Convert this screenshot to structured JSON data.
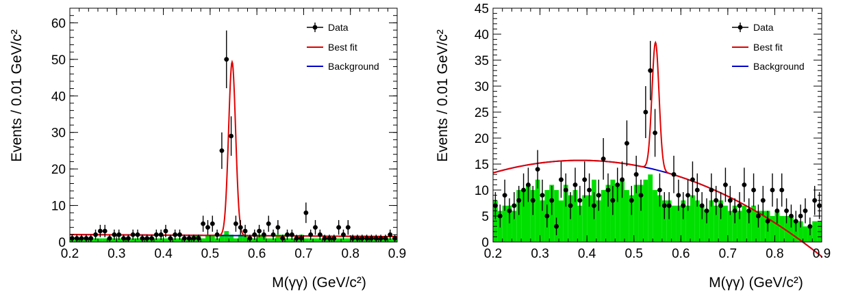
{
  "chart_data": [
    {
      "type": "histogram",
      "xlabel": "M(γγ) (GeV/c²)",
      "ylabel": "Events / 0.01 GeV/c²",
      "xlim": [
        0.2,
        0.9
      ],
      "ylim": [
        0,
        64
      ],
      "xticks": [
        "0.2",
        "0.3",
        "0.4",
        "0.5",
        "0.6",
        "0.7",
        "0.8",
        "0.9"
      ],
      "yticks": [
        "0",
        "10",
        "20",
        "30",
        "40",
        "50",
        "60"
      ],
      "ytick_values": [
        0,
        10,
        20,
        30,
        40,
        50,
        60
      ],
      "legend": [
        "Data",
        "Best fit",
        "Background"
      ],
      "colors": {
        "data": "#000000",
        "fit": "#e00000",
        "background": "#0000cc",
        "mc": "#00e000"
      },
      "data_points": {
        "x": [
          0.205,
          0.215,
          0.225,
          0.235,
          0.245,
          0.255,
          0.265,
          0.275,
          0.285,
          0.295,
          0.305,
          0.315,
          0.325,
          0.335,
          0.345,
          0.355,
          0.365,
          0.375,
          0.385,
          0.395,
          0.405,
          0.415,
          0.425,
          0.435,
          0.445,
          0.455,
          0.465,
          0.475,
          0.485,
          0.495,
          0.505,
          0.515,
          0.525,
          0.535,
          0.545,
          0.555,
          0.565,
          0.575,
          0.585,
          0.595,
          0.605,
          0.615,
          0.625,
          0.635,
          0.645,
          0.655,
          0.665,
          0.675,
          0.685,
          0.695,
          0.705,
          0.715,
          0.725,
          0.735,
          0.745,
          0.755,
          0.765,
          0.775,
          0.785,
          0.795,
          0.805,
          0.815,
          0.825,
          0.835,
          0.845,
          0.855,
          0.865,
          0.875,
          0.885,
          0.895
        ],
        "y": [
          1,
          1,
          1,
          1,
          1,
          2,
          3,
          3,
          1,
          2,
          2,
          1,
          1,
          2,
          2,
          1,
          1,
          1,
          2,
          2,
          3,
          1,
          2,
          2,
          1,
          1,
          1,
          1,
          5,
          4,
          5,
          2,
          25,
          50,
          29,
          5,
          4,
          3,
          1,
          2,
          3,
          2,
          5,
          2,
          4,
          1,
          2,
          2,
          1,
          1,
          8,
          2,
          4,
          2,
          1,
          1,
          1,
          4,
          2,
          4,
          1,
          1,
          1,
          1,
          1,
          1,
          1,
          1,
          2,
          1
        ],
        "yerr": [
          1,
          1,
          1,
          1,
          1,
          1.4,
          1.7,
          1.7,
          1,
          1.4,
          1.4,
          1,
          1,
          1.4,
          1.4,
          1,
          1,
          1,
          1.4,
          1.4,
          1.7,
          1,
          1.4,
          1.4,
          1,
          1,
          1,
          1,
          2.2,
          2,
          2.2,
          1.4,
          5,
          7.9,
          5.4,
          2.2,
          2,
          1.7,
          1,
          1.4,
          1.7,
          1.4,
          2.2,
          1.4,
          2,
          1,
          1.4,
          1.4,
          1,
          1,
          2.8,
          1.4,
          2,
          1.4,
          1,
          1,
          1,
          2,
          1.4,
          2,
          1,
          1,
          1,
          1,
          1,
          1,
          1,
          1,
          1.4,
          1
        ]
      },
      "mc_histogram": {
        "bin_width": 0.01,
        "x_start": 0.2,
        "values": [
          1,
          1,
          1,
          1,
          1,
          1,
          1,
          1,
          1,
          1,
          1,
          1,
          1,
          1,
          1,
          1,
          1,
          1,
          1,
          1,
          1,
          1,
          1,
          1,
          1,
          1,
          2,
          2,
          1,
          2,
          2,
          1,
          2,
          3,
          2,
          1,
          2,
          2,
          1,
          1,
          2,
          2,
          1,
          1,
          2,
          2,
          1,
          1,
          1,
          2,
          1,
          1,
          1,
          1,
          1,
          1,
          1,
          1,
          1,
          1,
          1,
          1,
          1,
          1,
          1,
          1,
          1,
          1,
          1,
          1
        ]
      },
      "fit": {
        "background": [
          2.2,
          -0.8
        ],
        "peak_mean": 0.547,
        "peak_sigma": 0.0075,
        "peak_amplitude": 47.5
      }
    },
    {
      "type": "histogram",
      "xlabel": "M(γγ) (GeV/c²)",
      "ylabel": "Events / 0.01 GeV/c²",
      "xlim": [
        0.2,
        0.9
      ],
      "ylim": [
        0,
        45
      ],
      "xticks": [
        "0.2",
        "0.3",
        "0.4",
        "0.5",
        "0.6",
        "0.7",
        "0.8",
        "0.9"
      ],
      "yticks": [
        "0",
        "5",
        "10",
        "15",
        "20",
        "25",
        "30",
        "35",
        "40",
        "45"
      ],
      "ytick_values": [
        0,
        5,
        10,
        15,
        20,
        25,
        30,
        35,
        40,
        45
      ],
      "legend": [
        "Data",
        "Best fit",
        "Background"
      ],
      "colors": {
        "data": "#000000",
        "fit": "#e00000",
        "background": "#0000cc",
        "mc": "#00e000"
      },
      "data_points": {
        "x": [
          0.205,
          0.215,
          0.225,
          0.235,
          0.245,
          0.255,
          0.265,
          0.275,
          0.285,
          0.295,
          0.305,
          0.315,
          0.325,
          0.335,
          0.345,
          0.355,
          0.365,
          0.375,
          0.385,
          0.395,
          0.405,
          0.415,
          0.425,
          0.435,
          0.445,
          0.455,
          0.465,
          0.475,
          0.485,
          0.495,
          0.505,
          0.515,
          0.525,
          0.535,
          0.545,
          0.555,
          0.565,
          0.575,
          0.585,
          0.595,
          0.605,
          0.615,
          0.625,
          0.635,
          0.645,
          0.655,
          0.665,
          0.675,
          0.685,
          0.695,
          0.705,
          0.715,
          0.725,
          0.735,
          0.745,
          0.755,
          0.765,
          0.775,
          0.785,
          0.795,
          0.805,
          0.815,
          0.825,
          0.835,
          0.845,
          0.855,
          0.865,
          0.875,
          0.885,
          0.895
        ],
        "y": [
          7,
          5,
          9,
          6,
          7,
          8,
          10,
          11,
          8,
          14,
          9,
          5,
          8,
          3,
          12,
          10,
          7,
          11,
          8,
          12,
          10,
          7,
          9,
          16,
          10,
          8,
          11,
          12,
          19,
          8,
          13,
          9,
          25,
          33,
          21,
          10,
          7,
          7,
          13,
          9,
          7,
          9,
          12,
          10,
          7,
          6,
          10,
          8,
          7,
          11,
          8,
          6,
          7,
          11,
          6,
          10,
          5,
          8,
          4,
          10,
          6,
          10,
          6,
          5,
          4,
          5,
          6,
          3,
          8,
          7
        ],
        "yerr": [
          2.6,
          2.2,
          3,
          2.4,
          2.6,
          2.8,
          3.2,
          3.3,
          2.8,
          3.7,
          3,
          2.2,
          2.8,
          1.7,
          3.5,
          3.2,
          2.6,
          3.3,
          2.8,
          3.5,
          3.2,
          2.6,
          3,
          4,
          3.2,
          2.8,
          3.3,
          3.5,
          4.4,
          2.8,
          3.6,
          3,
          5,
          5.7,
          4.6,
          3.2,
          2.6,
          2.6,
          3.6,
          3,
          2.6,
          3,
          3.5,
          3.2,
          2.6,
          2.4,
          3.2,
          2.8,
          2.6,
          3.3,
          2.8,
          2.4,
          2.6,
          3.3,
          2.4,
          3.2,
          2.2,
          2.8,
          2,
          3.2,
          2.4,
          3.2,
          2.4,
          2.2,
          2,
          2.2,
          2.4,
          1.7,
          2.8,
          2.6
        ]
      },
      "mc_histogram": {
        "bin_width": 0.01,
        "x_start": 0.2,
        "values": [
          8,
          6,
          7,
          7,
          6,
          10,
          10,
          11,
          10,
          12,
          8,
          10,
          11,
          10,
          8,
          11,
          9,
          10,
          7,
          9,
          9,
          12,
          8,
          10,
          11,
          12,
          11,
          12,
          10,
          9,
          11,
          11,
          12,
          13,
          10,
          9,
          8,
          8,
          7,
          7,
          8,
          7,
          9,
          8,
          7,
          6,
          8,
          7,
          8,
          7,
          6,
          7,
          6,
          7,
          6,
          7,
          6,
          6,
          6,
          5,
          6,
          5,
          5,
          5,
          4,
          4,
          3,
          3,
          4,
          4
        ]
      },
      "fit": {
        "background": [
          5.3,
          54.0,
          -70.0
        ],
        "peak_mean": 0.546,
        "peak_sigma": 0.0075,
        "peak_amplitude": 24.5
      }
    }
  ]
}
